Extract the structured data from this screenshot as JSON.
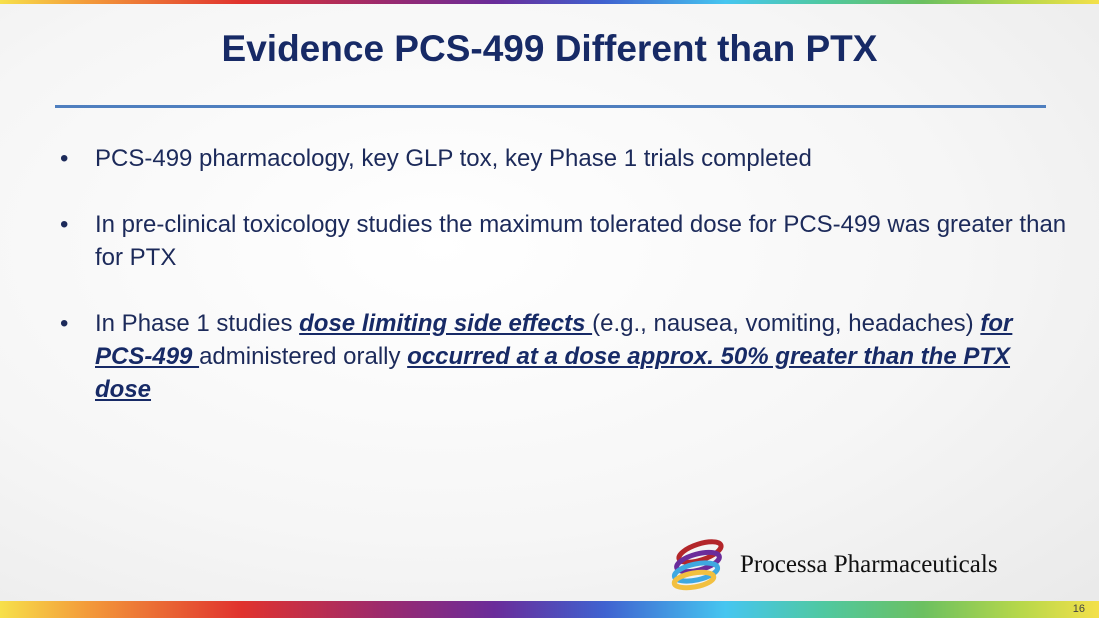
{
  "title": "Evidence PCS-499 Different than PTX",
  "bullets": [
    {
      "text": "PCS-499 pharmacology, key GLP tox, key Phase 1 trials completed"
    },
    {
      "text": "In pre-clinical toxicology studies the maximum tolerated dose for PCS-499 was greater than for PTX"
    },
    {
      "parts": [
        "In Phase 1 studies ",
        "dose limiting side effects ",
        "(e.g., nausea, vomiting, headaches) ",
        "for PCS-499 ",
        "administered orally ",
        "occurred at a dose approx. 50% greater than the PTX dose"
      ]
    }
  ],
  "bullet_glyph": "•",
  "logo": {
    "text": "Processa Pharmaceuticals",
    "icon": "rainbow-rings-logo"
  },
  "page_number": "16",
  "colors": {
    "title": "#172a66",
    "rule": "#4f7fbf"
  }
}
